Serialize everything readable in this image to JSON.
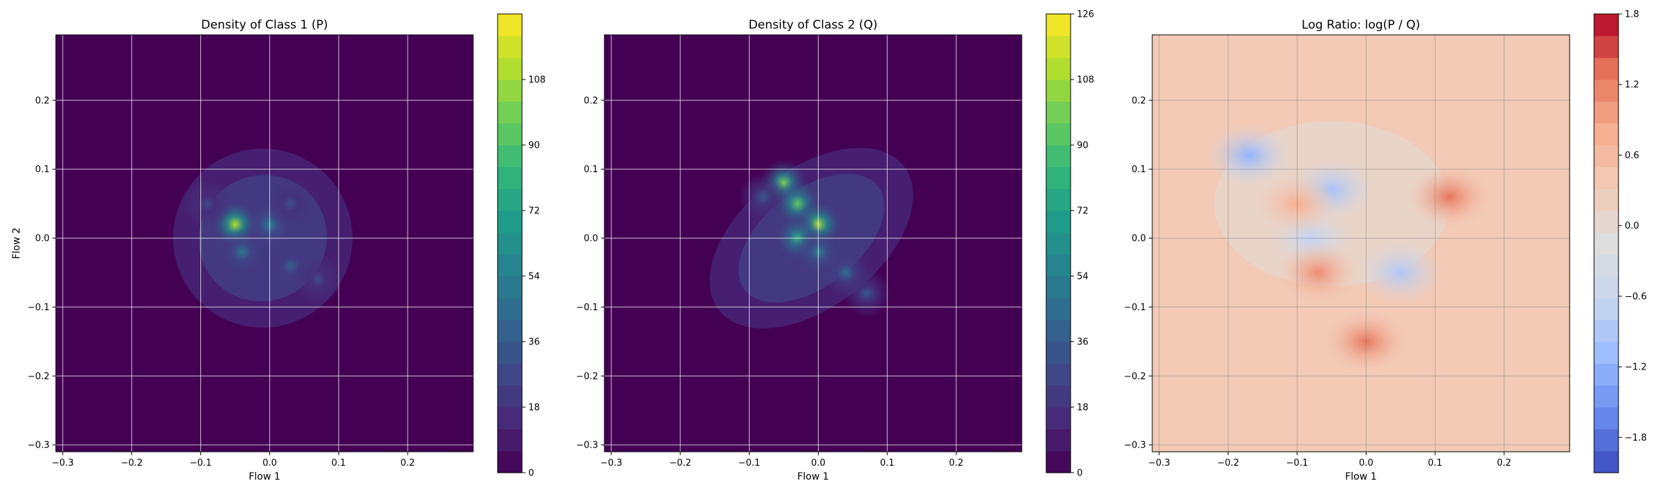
{
  "chart_data": [
    {
      "type": "heatmap",
      "title": "Density of Class 1 (P)",
      "xlabel": "Flow 1",
      "ylabel": "Flow 2",
      "xlim": [
        -0.31,
        0.295
      ],
      "ylim": [
        -0.31,
        0.295
      ],
      "xticks": [
        -0.3,
        -0.2,
        -0.1,
        0.0,
        0.1,
        0.2
      ],
      "xtick_labels": [
        "−0.3",
        "−0.2",
        "−0.1",
        "0.0",
        "0.1",
        "0.2"
      ],
      "yticks": [
        -0.3,
        -0.2,
        -0.1,
        0.0,
        0.1,
        0.2
      ],
      "ytick_labels": [
        "−0.3",
        "−0.2",
        "−0.1",
        "0.0",
        "0.1",
        "0.2"
      ],
      "grid": true,
      "colormap": "viridis",
      "colorbar": {
        "min": 0,
        "max": 126,
        "ticks": [
          0,
          18,
          36,
          54,
          72,
          90,
          108
        ],
        "tick_labels": [
          "0",
          "18",
          "36",
          "54",
          "72",
          "90",
          "108"
        ],
        "levels": 21
      },
      "blobs": [
        {
          "x": -0.05,
          "y": 0.02,
          "intensity": 112
        },
        {
          "x": 0.0,
          "y": 0.02,
          "intensity": 55
        },
        {
          "x": -0.04,
          "y": -0.02,
          "intensity": 50
        },
        {
          "x": 0.03,
          "y": -0.04,
          "intensity": 40
        },
        {
          "x": 0.07,
          "y": -0.06,
          "intensity": 30
        },
        {
          "x": -0.09,
          "y": 0.05,
          "intensity": 28
        },
        {
          "x": 0.03,
          "y": 0.05,
          "intensity": 32
        }
      ],
      "support": {
        "cx": -0.01,
        "cy": -0.0,
        "rx": 0.13,
        "ry": 0.13,
        "angle_deg": -30
      }
    },
    {
      "type": "heatmap",
      "title": "Density of Class 2 (Q)",
      "xlabel": "Flow 1",
      "ylabel": "",
      "xlim": [
        -0.31,
        0.295
      ],
      "ylim": [
        -0.31,
        0.295
      ],
      "xticks": [
        -0.3,
        -0.2,
        -0.1,
        0.0,
        0.1,
        0.2
      ],
      "xtick_labels": [
        "−0.3",
        "−0.2",
        "−0.1",
        "0.0",
        "0.1",
        "0.2"
      ],
      "yticks": [
        -0.3,
        -0.2,
        -0.1,
        0.0,
        0.1,
        0.2
      ],
      "ytick_labels": [
        "−0.3",
        "−0.2",
        "−0.1",
        "0.0",
        "0.1",
        "0.2"
      ],
      "grid": true,
      "colormap": "viridis",
      "colorbar": {
        "min": 0,
        "max": 126,
        "ticks": [
          0,
          18,
          36,
          54,
          72,
          90,
          108,
          126
        ],
        "tick_labels": [
          "0",
          "18",
          "36",
          "54",
          "72",
          "90",
          "108",
          "126"
        ],
        "levels": 21
      },
      "blobs": [
        {
          "x": -0.05,
          "y": 0.08,
          "intensity": 100
        },
        {
          "x": -0.03,
          "y": 0.05,
          "intensity": 95
        },
        {
          "x": 0.0,
          "y": 0.02,
          "intensity": 110
        },
        {
          "x": -0.03,
          "y": 0.0,
          "intensity": 80
        },
        {
          "x": 0.0,
          "y": -0.02,
          "intensity": 55
        },
        {
          "x": 0.04,
          "y": -0.05,
          "intensity": 45
        },
        {
          "x": 0.07,
          "y": -0.08,
          "intensity": 35
        },
        {
          "x": -0.08,
          "y": 0.06,
          "intensity": 35
        }
      ],
      "support": {
        "cx": -0.01,
        "cy": 0.0,
        "rx": 0.17,
        "ry": 0.1,
        "angle_deg": -38
      }
    },
    {
      "type": "heatmap",
      "title": "Log Ratio: log(P / Q)",
      "xlabel": "Flow 1",
      "ylabel": "",
      "xlim": [
        -0.31,
        0.295
      ],
      "ylim": [
        -0.31,
        0.295
      ],
      "xticks": [
        -0.3,
        -0.2,
        -0.1,
        0.0,
        0.1,
        0.2
      ],
      "xtick_labels": [
        "−0.3",
        "−0.2",
        "−0.1",
        "0.0",
        "0.1",
        "0.2"
      ],
      "yticks": [
        -0.3,
        -0.2,
        -0.1,
        0.0,
        0.1,
        0.2
      ],
      "ytick_labels": [
        "−0.3",
        "−0.2",
        "−0.1",
        "0.0",
        "0.1",
        "0.2"
      ],
      "grid": true,
      "colormap": "coolwarm",
      "colorbar": {
        "min": -2.1,
        "max": 1.8,
        "ticks": [
          -1.8,
          -1.2,
          -0.6,
          0.0,
          0.6,
          1.2,
          1.8
        ],
        "tick_labels": [
          "−1.8",
          "−1.2",
          "−0.6",
          "0.0",
          "0.6",
          "1.2",
          "1.8"
        ],
        "levels": 21
      },
      "background_value": 0.35,
      "features": [
        {
          "x": -0.17,
          "y": 0.12,
          "value": -1.2
        },
        {
          "x": -0.05,
          "y": 0.07,
          "value": -1.0
        },
        {
          "x": 0.05,
          "y": -0.05,
          "value": -0.9
        },
        {
          "x": -0.08,
          "y": 0.0,
          "value": -0.7
        },
        {
          "x": 0.12,
          "y": 0.06,
          "value": 1.3
        },
        {
          "x": -0.07,
          "y": -0.05,
          "value": 1.1
        },
        {
          "x": 0.0,
          "y": -0.15,
          "value": 1.3
        },
        {
          "x": -0.1,
          "y": 0.05,
          "value": 0.8
        }
      ]
    }
  ]
}
